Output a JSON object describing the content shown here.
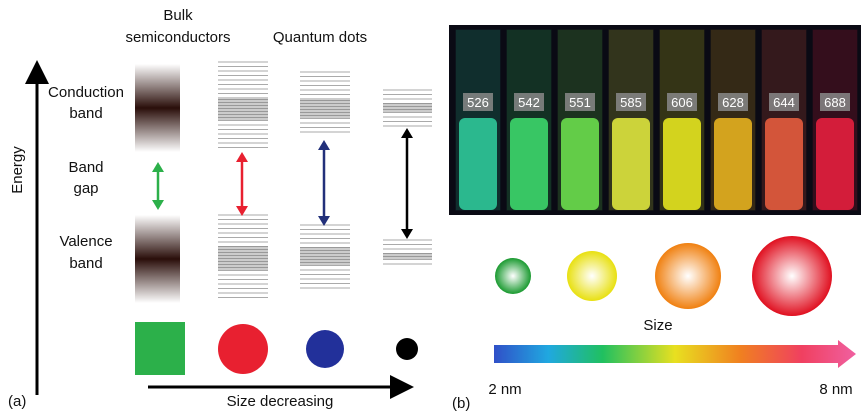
{
  "panel_a": {
    "label": "(a)",
    "axis_label": "Energy",
    "column_headers": {
      "bulk": [
        "Bulk",
        "semiconductors"
      ],
      "quantum": "Quantum dots"
    },
    "row_labels": {
      "conduction": [
        "Conduction",
        "band"
      ],
      "gap": [
        "Band",
        "gap"
      ],
      "valence": [
        "Valence",
        "band"
      ]
    },
    "size_label": "Size decreasing"
  },
  "panel_b": {
    "label": "(b)",
    "vial_labels": [
      "526",
      "542",
      "551",
      "585",
      "606",
      "628",
      "644",
      "688"
    ],
    "size_label": "Size",
    "scale_start": "2 nm",
    "scale_end": "8 nm"
  }
}
